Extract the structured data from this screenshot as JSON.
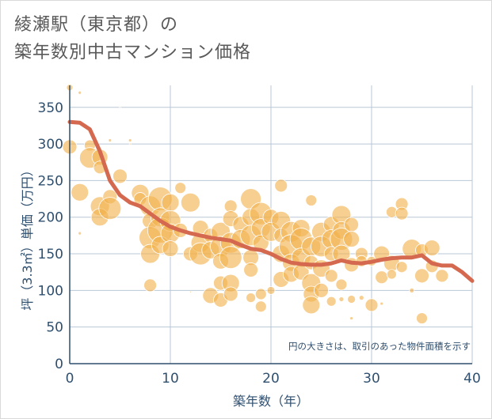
{
  "chart_data": {
    "type": "scatter",
    "title_lines": [
      "綾瀬駅（東京都）の",
      "築年数別中古マンション価格"
    ],
    "xlabel": "築年数（年）",
    "ylabel": "坪（3.3㎡）単価（万円）",
    "xlim": [
      0,
      40
    ],
    "ylim": [
      0,
      380
    ],
    "x_ticks": [
      0,
      10,
      20,
      30,
      40
    ],
    "y_ticks": [
      0,
      50,
      100,
      150,
      200,
      250,
      300,
      350
    ],
    "grid": true,
    "annotation": "円の大きさは、取引のあった物件面積を示す",
    "colors": {
      "bubble": "#f2b24d",
      "trend": "#d4694f",
      "grid": "#b8c7d6",
      "axis": "#2f4f6f"
    },
    "trend_line": {
      "x": [
        0,
        1,
        2,
        3,
        4,
        5,
        6,
        7,
        8,
        9,
        10,
        11,
        12,
        13,
        14,
        15,
        16,
        17,
        18,
        19,
        20,
        21,
        22,
        23,
        24,
        25,
        26,
        27,
        28,
        29,
        30,
        31,
        32,
        33,
        34,
        35,
        36,
        37,
        38,
        39,
        40
      ],
      "y": [
        330,
        329,
        320,
        290,
        250,
        230,
        220,
        215,
        205,
        195,
        187,
        182,
        178,
        175,
        172,
        170,
        168,
        162,
        157,
        155,
        150,
        143,
        138,
        136,
        135,
        135,
        137,
        141,
        138,
        137,
        139,
        142,
        144,
        145,
        145,
        148,
        137,
        134,
        134,
        125,
        113
      ]
    },
    "bubbles": [
      {
        "x": 0,
        "y": 377,
        "s": 4
      },
      {
        "x": 1,
        "y": 370,
        "s": 2
      },
      {
        "x": 0,
        "y": 296,
        "s": 9
      },
      {
        "x": 1,
        "y": 234,
        "s": 11
      },
      {
        "x": 1,
        "y": 178,
        "s": 2
      },
      {
        "x": 2,
        "y": 298,
        "s": 7
      },
      {
        "x": 2,
        "y": 281,
        "s": 13
      },
      {
        "x": 3,
        "y": 282,
        "s": 10
      },
      {
        "x": 3,
        "y": 268,
        "s": 8
      },
      {
        "x": 3,
        "y": 215,
        "s": 12
      },
      {
        "x": 3,
        "y": 200,
        "s": 11
      },
      {
        "x": 4,
        "y": 228,
        "s": 9
      },
      {
        "x": 4,
        "y": 212,
        "s": 14
      },
      {
        "x": 4,
        "y": 305,
        "s": 2
      },
      {
        "x": 5,
        "y": 256,
        "s": 9
      },
      {
        "x": 5,
        "y": 350,
        "s": 1
      },
      {
        "x": 6,
        "y": 305,
        "s": 2
      },
      {
        "x": 7,
        "y": 233,
        "s": 11
      },
      {
        "x": 7,
        "y": 225,
        "s": 8
      },
      {
        "x": 8,
        "y": 215,
        "s": 13
      },
      {
        "x": 8,
        "y": 195,
        "s": 10
      },
      {
        "x": 8,
        "y": 172,
        "s": 14
      },
      {
        "x": 8,
        "y": 150,
        "s": 12
      },
      {
        "x": 8,
        "y": 107,
        "s": 8
      },
      {
        "x": 9,
        "y": 225,
        "s": 15
      },
      {
        "x": 9,
        "y": 200,
        "s": 12
      },
      {
        "x": 9,
        "y": 182,
        "s": 16
      },
      {
        "x": 9,
        "y": 162,
        "s": 11
      },
      {
        "x": 10,
        "y": 220,
        "s": 11
      },
      {
        "x": 10,
        "y": 195,
        "s": 13
      },
      {
        "x": 10,
        "y": 178,
        "s": 12
      },
      {
        "x": 10,
        "y": 157,
        "s": 10
      },
      {
        "x": 11,
        "y": 240,
        "s": 7
      },
      {
        "x": 11,
        "y": 182,
        "s": 9
      },
      {
        "x": 12,
        "y": 220,
        "s": 12
      },
      {
        "x": 12,
        "y": 150,
        "s": 9
      },
      {
        "x": 13,
        "y": 185,
        "s": 10
      },
      {
        "x": 13,
        "y": 165,
        "s": 12
      },
      {
        "x": 13,
        "y": 150,
        "s": 14
      },
      {
        "x": 14,
        "y": 175,
        "s": 9
      },
      {
        "x": 14,
        "y": 155,
        "s": 11
      },
      {
        "x": 14,
        "y": 93,
        "s": 10
      },
      {
        "x": 15,
        "y": 180,
        "s": 12
      },
      {
        "x": 15,
        "y": 160,
        "s": 13
      },
      {
        "x": 15,
        "y": 140,
        "s": 10
      },
      {
        "x": 15,
        "y": 110,
        "s": 9
      },
      {
        "x": 15,
        "y": 87,
        "s": 9
      },
      {
        "x": 16,
        "y": 215,
        "s": 8
      },
      {
        "x": 16,
        "y": 198,
        "s": 10
      },
      {
        "x": 16,
        "y": 165,
        "s": 13
      },
      {
        "x": 16,
        "y": 145,
        "s": 14
      },
      {
        "x": 16,
        "y": 110,
        "s": 11
      },
      {
        "x": 16,
        "y": 95,
        "s": 9
      },
      {
        "x": 17,
        "y": 190,
        "s": 10
      },
      {
        "x": 17,
        "y": 170,
        "s": 12
      },
      {
        "x": 18,
        "y": 225,
        "s": 13
      },
      {
        "x": 18,
        "y": 200,
        "s": 11
      },
      {
        "x": 18,
        "y": 175,
        "s": 13
      },
      {
        "x": 18,
        "y": 145,
        "s": 10
      },
      {
        "x": 18,
        "y": 128,
        "s": 9
      },
      {
        "x": 18,
        "y": 90,
        "s": 6
      },
      {
        "x": 19,
        "y": 205,
        "s": 14
      },
      {
        "x": 19,
        "y": 185,
        "s": 12
      },
      {
        "x": 19,
        "y": 165,
        "s": 10
      },
      {
        "x": 19,
        "y": 78,
        "s": 7
      },
      {
        "x": 19,
        "y": 95,
        "s": 7
      },
      {
        "x": 20,
        "y": 200,
        "s": 10
      },
      {
        "x": 20,
        "y": 180,
        "s": 12
      },
      {
        "x": 20,
        "y": 100,
        "s": 5
      },
      {
        "x": 21,
        "y": 243,
        "s": 8
      },
      {
        "x": 21,
        "y": 195,
        "s": 12
      },
      {
        "x": 21,
        "y": 175,
        "s": 9
      },
      {
        "x": 21,
        "y": 150,
        "s": 11
      },
      {
        "x": 21,
        "y": 115,
        "s": 10
      },
      {
        "x": 22,
        "y": 180,
        "s": 13
      },
      {
        "x": 22,
        "y": 160,
        "s": 15
      },
      {
        "x": 22,
        "y": 138,
        "s": 11
      },
      {
        "x": 22,
        "y": 122,
        "s": 10
      },
      {
        "x": 23,
        "y": 185,
        "s": 11
      },
      {
        "x": 23,
        "y": 170,
        "s": 14
      },
      {
        "x": 23,
        "y": 145,
        "s": 12
      },
      {
        "x": 23,
        "y": 125,
        "s": 10
      },
      {
        "x": 24,
        "y": 223,
        "s": 7
      },
      {
        "x": 24,
        "y": 160,
        "s": 12
      },
      {
        "x": 24,
        "y": 138,
        "s": 9
      },
      {
        "x": 24,
        "y": 110,
        "s": 12
      },
      {
        "x": 24,
        "y": 95,
        "s": 10
      },
      {
        "x": 24,
        "y": 80,
        "s": 11
      },
      {
        "x": 25,
        "y": 180,
        "s": 12
      },
      {
        "x": 25,
        "y": 160,
        "s": 13
      },
      {
        "x": 25,
        "y": 130,
        "s": 11
      },
      {
        "x": 25,
        "y": 100,
        "s": 9
      },
      {
        "x": 26,
        "y": 190,
        "s": 10
      },
      {
        "x": 26,
        "y": 170,
        "s": 12
      },
      {
        "x": 26,
        "y": 150,
        "s": 9
      },
      {
        "x": 26,
        "y": 120,
        "s": 8
      },
      {
        "x": 26,
        "y": 85,
        "s": 6
      },
      {
        "x": 27,
        "y": 203,
        "s": 12
      },
      {
        "x": 27,
        "y": 182,
        "s": 11
      },
      {
        "x": 27,
        "y": 170,
        "s": 14
      },
      {
        "x": 27,
        "y": 150,
        "s": 11
      },
      {
        "x": 27,
        "y": 108,
        "s": 7
      },
      {
        "x": 27,
        "y": 88,
        "s": 3
      },
      {
        "x": 28,
        "y": 190,
        "s": 9
      },
      {
        "x": 28,
        "y": 170,
        "s": 10
      },
      {
        "x": 28,
        "y": 135,
        "s": 9
      },
      {
        "x": 28,
        "y": 88,
        "s": 5
      },
      {
        "x": 28,
        "y": 62,
        "s": 2
      },
      {
        "x": 29,
        "y": 150,
        "s": 8
      },
      {
        "x": 29,
        "y": 140,
        "s": 7
      },
      {
        "x": 29,
        "y": 90,
        "s": 3
      },
      {
        "x": 30,
        "y": 80,
        "s": 8
      },
      {
        "x": 30,
        "y": 140,
        "s": 6
      },
      {
        "x": 31,
        "y": 150,
        "s": 10
      },
      {
        "x": 31,
        "y": 118,
        "s": 8
      },
      {
        "x": 31,
        "y": 82,
        "s": 2
      },
      {
        "x": 32,
        "y": 207,
        "s": 7
      },
      {
        "x": 32,
        "y": 137,
        "s": 10
      },
      {
        "x": 32,
        "y": 122,
        "s": 6
      },
      {
        "x": 33,
        "y": 218,
        "s": 8
      },
      {
        "x": 33,
        "y": 205,
        "s": 8
      },
      {
        "x": 33,
        "y": 132,
        "s": 7
      },
      {
        "x": 34,
        "y": 157,
        "s": 12
      },
      {
        "x": 34,
        "y": 100,
        "s": 3
      },
      {
        "x": 35,
        "y": 155,
        "s": 8
      },
      {
        "x": 35,
        "y": 120,
        "s": 9
      },
      {
        "x": 35,
        "y": 62,
        "s": 7
      },
      {
        "x": 36,
        "y": 158,
        "s": 10
      },
      {
        "x": 36,
        "y": 133,
        "s": 8
      },
      {
        "x": 37,
        "y": 120,
        "s": 8
      },
      {
        "x": 6,
        "y": 300,
        "s": 1
      },
      {
        "x": 12,
        "y": 98,
        "s": 1
      }
    ]
  }
}
